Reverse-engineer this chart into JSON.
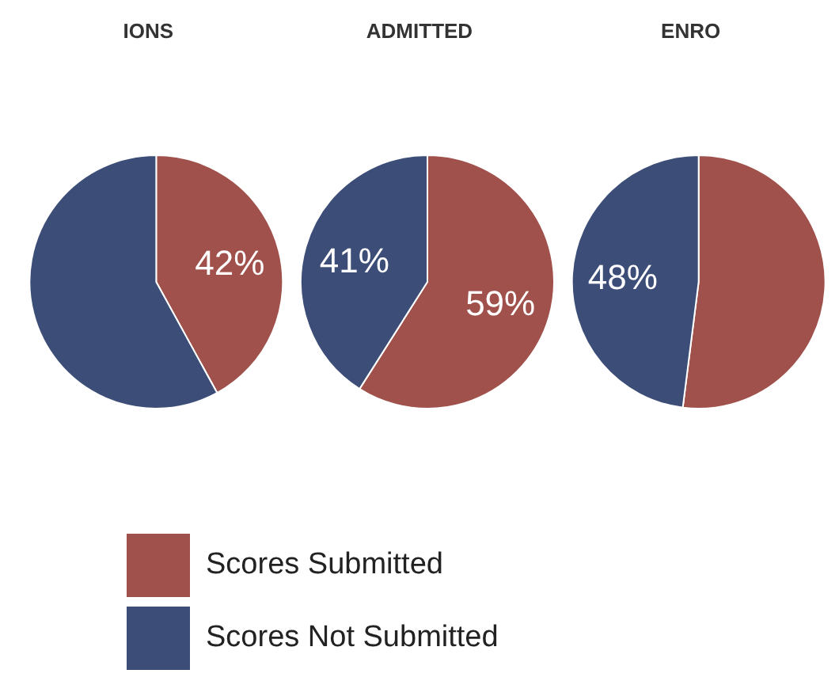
{
  "chart_data": {
    "type": "pie",
    "categories": [
      "Scores Submitted",
      "Scores Not Submitted"
    ],
    "colors": [
      "#a0514c",
      "#3c4e78"
    ],
    "legend": "bottom",
    "series": [
      {
        "name": "IONS",
        "values": [
          42,
          58
        ],
        "value_labels": [
          "42%",
          null
        ]
      },
      {
        "name": "ADMITTED",
        "values": [
          59,
          41
        ],
        "value_labels": [
          "59%",
          "41%"
        ]
      },
      {
        "name": "ENRO",
        "values": [
          52,
          48
        ],
        "value_labels": [
          null,
          "48%"
        ]
      }
    ]
  }
}
